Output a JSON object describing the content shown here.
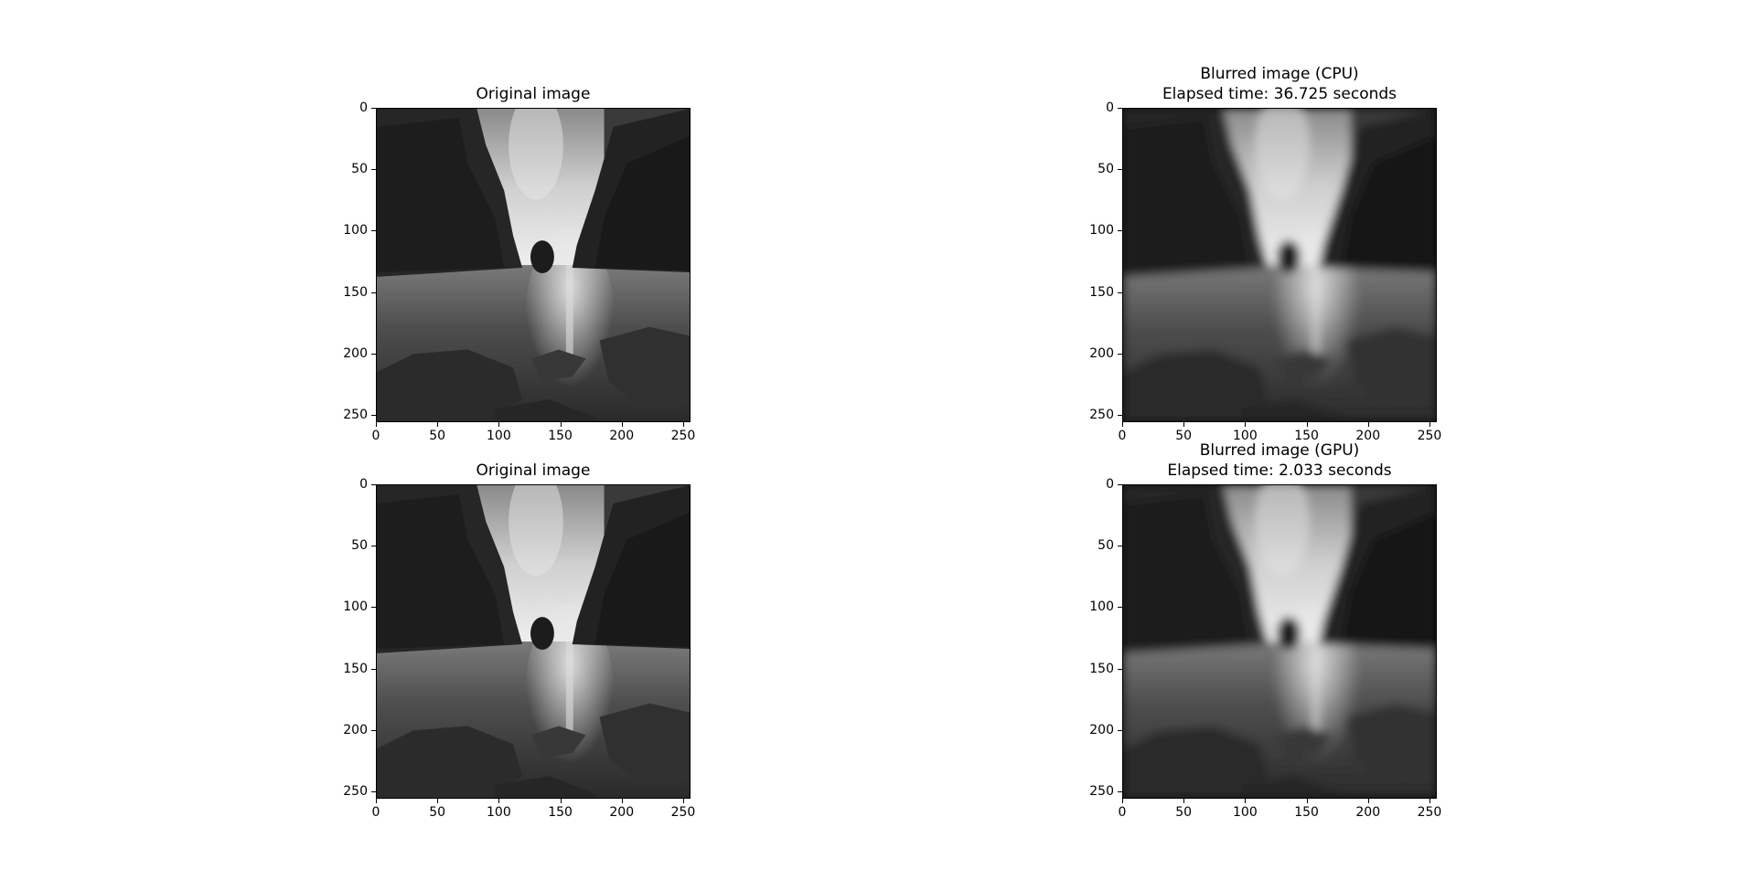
{
  "panels": [
    {
      "id": "orig-top",
      "title_lines": [
        "Original image"
      ],
      "blurred": false
    },
    {
      "id": "cpu",
      "title_lines": [
        "Blurred image (CPU)",
        "Elapsed time: 36.725 seconds"
      ],
      "blurred": true
    },
    {
      "id": "orig-bottom",
      "title_lines": [
        "Original image"
      ],
      "blurred": false
    },
    {
      "id": "gpu",
      "title_lines": [
        "Blurred image (GPU)",
        "Elapsed time: 2.033 seconds"
      ],
      "blurred": true
    }
  ],
  "axis_ticks": {
    "x": [
      "0",
      "50",
      "100",
      "150",
      "200",
      "250"
    ],
    "y": [
      "0",
      "50",
      "100",
      "150",
      "200",
      "250"
    ],
    "range": [
      0,
      256
    ]
  },
  "colors": {
    "background": "#ffffff",
    "image_tone": "grayscale"
  }
}
